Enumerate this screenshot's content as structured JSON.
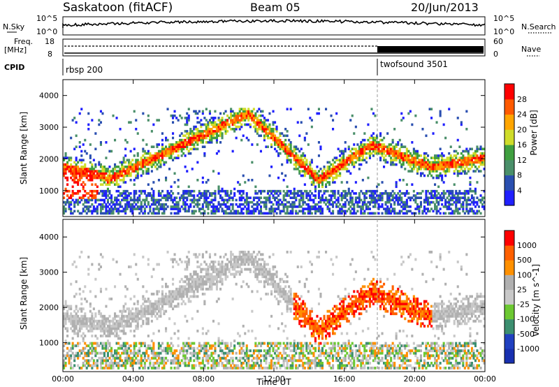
{
  "header": {
    "station": "Saskatoon (fitACF)",
    "beam": "Beam 05",
    "date": "20/Jun/2013"
  },
  "top_panels": {
    "nsky_label": "N.Sky",
    "nsearch_label": "N.Search",
    "nsky_ticks": [
      "10^5",
      "10^0"
    ],
    "nsearch_ticks": [
      "10^5",
      "10^0"
    ],
    "freq_label": "Freq.",
    "freq_unit": "[MHz]",
    "freq_ticks": [
      "18",
      "8"
    ],
    "nave_label": "Nave",
    "nave_ticks": [
      "60",
      "0"
    ],
    "cpid_label": "CPID",
    "cpid_segments": [
      {
        "name": "rbsp 200",
        "start_hour": 0
      },
      {
        "name": "twofsound 3501",
        "start_hour": 18
      }
    ]
  },
  "colors": {
    "power_scale": [
      "#2020ff",
      "#2a4fb0",
      "#4a8f6a",
      "#3f9f3f",
      "#cfdc2a",
      "#ffa500",
      "#ff5a00",
      "#ff0000"
    ],
    "velocity_scale": [
      "#ff0000",
      "#ff6000",
      "#ff9000",
      "#b0b0b0",
      "#c8c8c8",
      "#6cc832",
      "#3c8f70",
      "#2040c0",
      "#1830b0"
    ]
  },
  "chart_data": [
    {
      "type": "heatmap",
      "panel": "power",
      "xlabel": "",
      "ylabel": "Slant Range [km]",
      "ylim": [
        180,
        4500
      ],
      "y_ticks": [
        "1000",
        "2000",
        "3000",
        "4000"
      ],
      "xlim_hours": [
        0,
        24
      ],
      "colorbar": {
        "label": "Power [dB]",
        "ticks": [
          "4",
          "8",
          "12",
          "16",
          "20",
          "24",
          "28"
        ],
        "range": [
          0,
          30
        ]
      },
      "features": [
        {
          "name": "rising arc",
          "range_km_start": 1300,
          "range_km_end": 3400,
          "hour_start": 2.5,
          "hour_end": 10.5
        },
        {
          "name": "falling arc",
          "range_km_start": 3400,
          "range_km_end": 1300,
          "hour_start": 10.5,
          "hour_end": 14.5
        },
        {
          "name": "near band",
          "range_km": 800,
          "hour_start": 0,
          "hour_end": 24
        }
      ]
    },
    {
      "type": "heatmap",
      "panel": "velocity",
      "xlabel": "Time UT",
      "ylabel": "Slant Range [km]",
      "ylim": [
        180,
        4500
      ],
      "y_ticks": [
        "1000",
        "2000",
        "3000",
        "4000"
      ],
      "x_ticks": [
        "00:00",
        "04:00",
        "08:00",
        "12:00",
        "16:00",
        "20:00",
        "00:00"
      ],
      "xlim_hours": [
        0,
        24
      ],
      "colorbar": {
        "label": "Velocity [m s^-1]",
        "ticks": [
          "1000",
          "500",
          "100",
          "25",
          "-25",
          "-100",
          "-500",
          "-1000"
        ]
      }
    }
  ]
}
